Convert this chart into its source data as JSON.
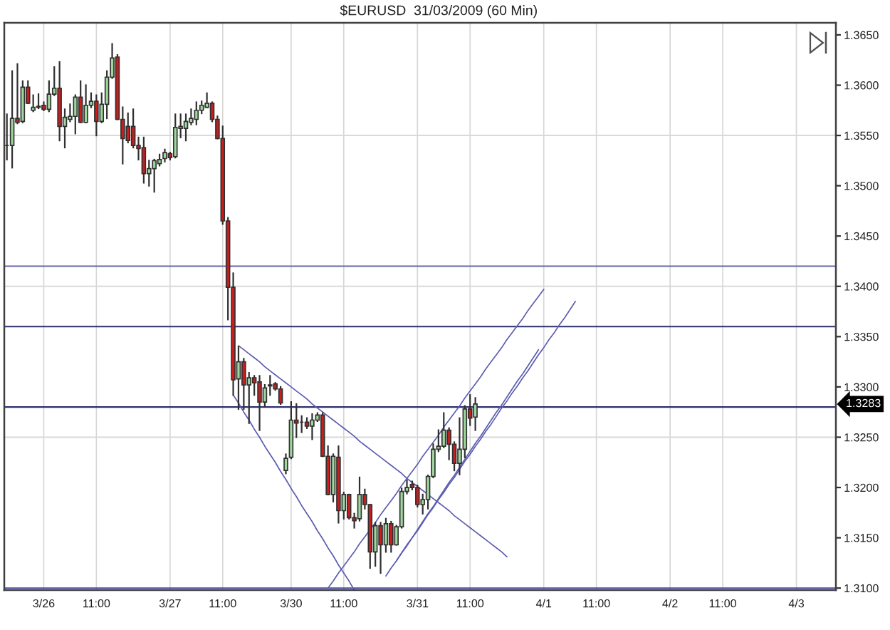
{
  "chart_data": {
    "type": "candlestick",
    "title": "$EURUSD  31/03/2009 (60 Min)",
    "categories": [
      null,
      null,
      null,
      null,
      null,
      null,
      null,
      "3/26",
      null,
      null,
      null,
      null,
      null,
      null,
      null,
      null,
      null,
      "11:00",
      null,
      null,
      null,
      null,
      null,
      null,
      null,
      null,
      null,
      null,
      null,
      null,
      null,
      "3/27",
      null,
      null,
      null,
      null,
      null,
      null,
      null,
      null,
      null,
      "11:00",
      null,
      null,
      null,
      null,
      null,
      null,
      null,
      null,
      null,
      null,
      null,
      null,
      "3/30",
      null,
      null,
      null,
      null,
      null,
      null,
      null,
      null,
      null,
      "11:00",
      null,
      null,
      null,
      null,
      null,
      null,
      null,
      null,
      null,
      null,
      null,
      null,
      null,
      "3/31",
      null,
      null,
      null,
      null,
      null,
      null,
      null,
      null,
      null,
      "11:00",
      null,
      null,
      null,
      null,
      null,
      null,
      null,
      null,
      null,
      null,
      null,
      null,
      null,
      "4/1",
      null,
      null,
      null,
      null,
      null,
      null,
      null,
      null,
      null,
      "11:00",
      null,
      null,
      null,
      null,
      null,
      null,
      null,
      null,
      null,
      null,
      null,
      null,
      null,
      "4/2",
      null,
      null,
      null,
      null,
      null,
      null,
      null,
      null,
      null,
      "11:00",
      null,
      null,
      null,
      null,
      null,
      null,
      null,
      null,
      null,
      null,
      null,
      null,
      null,
      "4/3",
      null,
      null,
      null,
      null,
      null,
      null,
      null
    ],
    "ohlc": [
      [
        1.354,
        1.3571,
        1.3526,
        1.354
      ],
      [
        1.354,
        1.3614,
        1.3518,
        1.3567
      ],
      [
        1.3567,
        1.3621,
        1.3562,
        1.3563
      ],
      [
        1.3564,
        1.3604,
        1.3563,
        1.3598
      ],
      [
        1.3598,
        1.3604,
        1.3582,
        1.3582
      ],
      [
        1.3575,
        1.359,
        1.3574,
        1.3578
      ],
      [
        1.3578,
        1.3591,
        1.3577,
        1.3579
      ],
      [
        1.358,
        1.3583,
        1.3575,
        1.3576
      ],
      [
        1.3576,
        1.3604,
        1.3574,
        1.3591
      ],
      [
        1.3591,
        1.3618,
        1.359,
        1.3597
      ],
      [
        1.3597,
        1.3623,
        1.3545,
        1.3559
      ],
      [
        1.3559,
        1.3576,
        1.3538,
        1.3568
      ],
      [
        1.3566,
        1.3581,
        1.3564,
        1.3569
      ],
      [
        1.3569,
        1.359,
        1.3552,
        1.3588
      ],
      [
        1.3588,
        1.3604,
        1.3563,
        1.3563
      ],
      [
        1.3563,
        1.36,
        1.3563,
        1.358
      ],
      [
        1.358,
        1.3592,
        1.3578,
        1.3584
      ],
      [
        1.3584,
        1.359,
        1.355,
        1.3564
      ],
      [
        1.3564,
        1.3592,
        1.3563,
        1.3581
      ],
      [
        1.3581,
        1.3614,
        1.3567,
        1.3608
      ],
      [
        1.3608,
        1.3641,
        1.3607,
        1.3627
      ],
      [
        1.3628,
        1.363,
        1.3566,
        1.3566
      ],
      [
        1.3566,
        1.3578,
        1.3522,
        1.3547
      ],
      [
        1.3559,
        1.3572,
        1.3543,
        1.3545
      ],
      [
        1.3559,
        1.3576,
        1.3538,
        1.354
      ],
      [
        1.354,
        1.3548,
        1.3526,
        1.3537
      ],
      [
        1.3538,
        1.3548,
        1.3503,
        1.3512
      ],
      [
        1.3512,
        1.3525,
        1.35,
        1.3517
      ],
      [
        1.3517,
        1.3526,
        1.3494,
        1.3525
      ],
      [
        1.3522,
        1.3531,
        1.352,
        1.3526
      ],
      [
        1.3527,
        1.3536,
        1.3524,
        1.3533
      ],
      [
        1.3532,
        1.3533,
        1.3526,
        1.3528
      ],
      [
        1.3529,
        1.3571,
        1.3528,
        1.3558
      ],
      [
        1.3557,
        1.3571,
        1.3548,
        1.3559
      ],
      [
        1.3557,
        1.3571,
        1.3545,
        1.3564
      ],
      [
        1.3563,
        1.3576,
        1.3561,
        1.3567
      ],
      [
        1.3566,
        1.3583,
        1.3561,
        1.3575
      ],
      [
        1.3575,
        1.3584,
        1.3572,
        1.358
      ],
      [
        1.3578,
        1.3592,
        1.3578,
        1.3582
      ],
      [
        1.3582,
        1.3583,
        1.3564,
        1.3566
      ],
      [
        1.3566,
        1.3569,
        1.3547,
        1.3547
      ],
      [
        1.3547,
        1.3559,
        1.3462,
        1.3465
      ],
      [
        1.3465,
        1.3468,
        1.3367,
        1.3399
      ],
      [
        1.3399,
        1.3413,
        1.3292,
        1.3307
      ],
      [
        1.3308,
        1.334,
        1.3278,
        1.3325
      ],
      [
        1.3325,
        1.3328,
        1.3278,
        1.3302
      ],
      [
        1.3302,
        1.3314,
        1.3264,
        1.3309
      ],
      [
        1.3309,
        1.3311,
        1.3292,
        1.3304
      ],
      [
        1.3305,
        1.3311,
        1.3257,
        1.3285
      ],
      [
        1.3285,
        1.3302,
        1.3281,
        1.3299
      ],
      [
        1.3302,
        1.3311,
        1.3292,
        1.3301
      ],
      [
        1.3303,
        1.3304,
        1.3297,
        1.3298
      ],
      [
        1.3298,
        1.33,
        1.3283,
        1.3284
      ],
      [
        1.3217,
        1.3233,
        1.3214,
        1.3229
      ],
      [
        1.323,
        1.3285,
        1.3229,
        1.3267
      ],
      [
        1.3267,
        1.3283,
        1.325,
        1.3264
      ],
      [
        1.3265,
        1.3271,
        1.3255,
        1.3265
      ],
      [
        1.3265,
        1.3269,
        1.3259,
        1.3261
      ],
      [
        1.3261,
        1.3273,
        1.3248,
        1.3267
      ],
      [
        1.3267,
        1.3274,
        1.3266,
        1.3272
      ],
      [
        1.3272,
        1.3274,
        1.3231,
        1.3231
      ],
      [
        1.3231,
        1.3241,
        1.3193,
        1.3193
      ],
      [
        1.3193,
        1.3233,
        1.3186,
        1.3231
      ],
      [
        1.323,
        1.3241,
        1.3165,
        1.3177
      ],
      [
        1.3177,
        1.3195,
        1.3169,
        1.3193
      ],
      [
        1.3193,
        1.3193,
        1.3169,
        1.317
      ],
      [
        1.317,
        1.3174,
        1.316,
        1.3167
      ],
      [
        1.3169,
        1.321,
        1.3167,
        1.3193
      ],
      [
        1.3193,
        1.3198,
        1.3179,
        1.3183
      ],
      [
        1.3183,
        1.3183,
        1.312,
        1.3136
      ],
      [
        1.3136,
        1.3165,
        1.3122,
        1.3162
      ],
      [
        1.3162,
        1.3165,
        1.3115,
        1.3143
      ],
      [
        1.3143,
        1.3169,
        1.3136,
        1.3164
      ],
      [
        1.3164,
        1.3166,
        1.3136,
        1.3143
      ],
      [
        1.3143,
        1.3162,
        1.3143,
        1.3161
      ],
      [
        1.3161,
        1.3199,
        1.316,
        1.3196
      ],
      [
        1.3196,
        1.3207,
        1.3194,
        1.32
      ],
      [
        1.3203,
        1.3206,
        1.3198,
        1.32
      ],
      [
        1.32,
        1.3202,
        1.3181,
        1.3183
      ],
      [
        1.3183,
        1.3193,
        1.3174,
        1.3188
      ],
      [
        1.3188,
        1.3212,
        1.3179,
        1.3211
      ],
      [
        1.3211,
        1.3243,
        1.321,
        1.3238
      ],
      [
        1.3238,
        1.3257,
        1.3236,
        1.3241
      ],
      [
        1.3241,
        1.3274,
        1.324,
        1.3257
      ],
      [
        1.3257,
        1.3259,
        1.3228,
        1.3243
      ],
      [
        1.3243,
        1.3245,
        1.3217,
        1.3224
      ],
      [
        1.3224,
        1.3269,
        1.3213,
        1.3238
      ],
      [
        1.3238,
        1.3281,
        1.323,
        1.3278
      ],
      [
        1.3278,
        1.3292,
        1.3262,
        1.3269
      ],
      [
        1.327,
        1.3289,
        1.3257,
        1.3283
      ],
      null,
      null,
      null,
      null,
      null,
      null,
      null,
      null,
      null,
      null,
      null,
      null,
      null,
      null,
      null,
      null,
      null,
      null,
      null,
      null,
      null,
      null,
      null,
      null,
      null,
      null,
      null,
      null,
      null,
      null,
      null,
      null,
      null,
      null,
      null,
      null,
      null,
      null,
      null,
      null,
      null,
      null,
      null,
      null,
      null,
      null,
      null,
      null,
      null,
      null,
      null,
      null,
      null,
      null,
      null,
      null,
      null,
      null,
      null,
      null,
      null,
      null,
      null,
      null,
      null,
      null,
      null,
      null
    ],
    "colors": [
      "#303030",
      "#9fd89f",
      "#c81e1e",
      "#9fd89f",
      "#c81e1e",
      "#9fd89f",
      "#9fd89f",
      "#c81e1e",
      "#9fd89f",
      "#9fd89f",
      "#c81e1e",
      "#9fd89f",
      "#9fd89f",
      "#9fd89f",
      "#c81e1e",
      "#9fd89f",
      "#9fd89f",
      "#c81e1e",
      "#9fd89f",
      "#9fd89f",
      "#9fd89f",
      "#c81e1e",
      "#c81e1e",
      "#c81e1e",
      "#c81e1e",
      "#c81e1e",
      "#c81e1e",
      "#9fd89f",
      "#9fd89f",
      "#9fd89f",
      "#9fd89f",
      "#c81e1e",
      "#9fd89f",
      "#9fd89f",
      "#9fd89f",
      "#9fd89f",
      "#9fd89f",
      "#9fd89f",
      "#9fd89f",
      "#c81e1e",
      "#c81e1e",
      "#c81e1e",
      "#c81e1e",
      "#c81e1e",
      "#9fd89f",
      "#c81e1e",
      "#9fd89f",
      "#c81e1e",
      "#c81e1e",
      "#9fd89f",
      "#c81e1e",
      "#c81e1e",
      "#c81e1e",
      "#9fd89f",
      "#9fd89f",
      "#c81e1e",
      "#303030",
      "#c81e1e",
      "#9fd89f",
      "#9fd89f",
      "#c81e1e",
      "#c81e1e",
      "#9fd89f",
      "#c81e1e",
      "#9fd89f",
      "#c81e1e",
      "#c81e1e",
      "#9fd89f",
      "#c81e1e",
      "#c81e1e",
      "#9fd89f",
      "#c81e1e",
      "#9fd89f",
      "#c81e1e",
      "#9fd89f",
      "#9fd89f",
      "#9fd89f",
      "#c81e1e",
      "#c81e1e",
      "#9fd89f",
      "#9fd89f",
      "#9fd89f",
      "#9fd89f",
      "#9fd89f",
      "#c81e1e",
      "#c81e1e",
      "#9fd89f",
      "#9fd89f",
      "#c81e1e",
      "#9fd89f",
      null,
      null,
      null,
      null,
      null,
      null,
      null,
      null,
      null,
      null,
      null,
      null,
      null,
      null,
      null,
      null,
      null,
      null,
      null,
      null,
      null,
      null,
      null,
      null,
      null,
      null,
      null,
      null,
      null,
      null,
      null,
      null,
      null,
      null,
      null,
      null,
      null,
      null,
      null,
      null,
      null,
      null,
      null,
      null,
      null,
      null,
      null,
      null,
      null,
      null,
      null,
      null,
      null,
      null,
      null,
      null,
      null,
      null,
      null,
      null,
      null,
      null,
      null,
      null,
      null,
      null,
      null,
      null
    ],
    "series": [
      {
        "type": "line",
        "color": "#5b5bb0",
        "values": [
          null,
          null,
          null,
          null,
          null,
          null,
          null,
          null,
          null,
          null,
          null,
          null,
          null,
          null,
          null,
          null,
          null,
          null,
          null,
          null,
          null,
          null,
          null,
          null,
          null,
          null,
          null,
          null,
          null,
          null,
          null,
          null,
          null,
          null,
          null,
          null,
          null,
          null,
          null,
          null,
          null,
          null,
          null,
          null,
          1.3341,
          1.3337,
          1.3333,
          1.3329,
          1.3325,
          1.332,
          1.3316,
          1.3312,
          1.3308,
          1.3304,
          1.33,
          1.3296,
          1.3292,
          1.3288,
          1.3283,
          1.3279,
          1.3275,
          1.3271,
          1.3267,
          1.3263,
          1.3259,
          1.3255,
          1.3251,
          1.3246,
          1.3242,
          1.3238,
          1.3234,
          1.323,
          1.3226,
          1.3222,
          1.3218,
          1.3214,
          1.3209,
          1.3205,
          1.3201,
          1.3197,
          1.3193,
          1.3189,
          1.3185,
          1.3181,
          1.3177,
          1.3172,
          1.3168,
          1.3164,
          1.316,
          1.3156,
          1.3152,
          1.3148,
          1.3144,
          1.314,
          1.3136,
          1.3131,
          null,
          null,
          null,
          null,
          null,
          null,
          null,
          null,
          null,
          null,
          null,
          null,
          null,
          null,
          null,
          null,
          null,
          null,
          null,
          null,
          null,
          null,
          null,
          null,
          null,
          null,
          null,
          null,
          null,
          null,
          null,
          null,
          null,
          null,
          null,
          null,
          null,
          null,
          null,
          null,
          null,
          null,
          null,
          null,
          null,
          null,
          null,
          null,
          null,
          null,
          null,
          null,
          null,
          null,
          null,
          null,
          null,
          null,
          null,
          null,
          null,
          null
        ]
      },
      {
        "type": "line",
        "color": "#5b5bb0",
        "values": [
          null,
          null,
          null,
          null,
          null,
          null,
          null,
          null,
          null,
          null,
          null,
          null,
          null,
          null,
          null,
          null,
          null,
          null,
          null,
          null,
          null,
          null,
          null,
          null,
          null,
          null,
          null,
          null,
          null,
          null,
          null,
          null,
          null,
          null,
          null,
          null,
          null,
          null,
          null,
          null,
          null,
          null,
          null,
          1.3292,
          1.3284,
          1.3275,
          1.3267,
          1.3258,
          1.325,
          1.3241,
          1.3233,
          1.3225,
          1.3216,
          1.3208,
          1.3199,
          1.3191,
          1.3182,
          1.3174,
          1.3166,
          1.3157,
          1.3149,
          1.314,
          1.3132,
          1.3123,
          1.3115,
          1.3107,
          1.3098,
          null,
          null,
          null,
          null,
          null,
          null,
          null,
          null,
          null,
          null,
          null,
          null,
          null,
          null,
          null,
          null,
          null,
          null,
          null,
          null,
          null,
          null,
          null,
          null,
          null,
          null,
          null,
          null,
          null,
          null,
          null,
          null,
          null,
          null,
          null,
          null,
          null,
          null,
          null,
          null,
          null,
          null,
          null,
          null,
          null,
          null,
          null,
          null,
          null,
          null,
          null,
          null,
          null,
          null,
          null,
          null,
          null,
          null,
          null,
          null,
          null,
          null,
          null,
          null,
          null,
          null,
          null,
          null,
          null,
          null,
          null,
          null,
          null,
          null,
          null,
          null,
          null,
          null,
          null,
          null,
          null,
          null,
          null,
          null,
          null,
          null,
          null,
          null,
          null,
          null,
          null
        ]
      },
      {
        "type": "line",
        "color": "#5b5bb0",
        "values": [
          null,
          null,
          null,
          null,
          null,
          null,
          null,
          null,
          null,
          null,
          null,
          null,
          null,
          null,
          null,
          null,
          null,
          null,
          null,
          null,
          null,
          null,
          null,
          null,
          null,
          null,
          null,
          null,
          null,
          null,
          null,
          null,
          null,
          null,
          null,
          null,
          null,
          null,
          null,
          null,
          null,
          null,
          null,
          null,
          null,
          null,
          null,
          null,
          null,
          null,
          null,
          null,
          null,
          null,
          null,
          null,
          null,
          null,
          null,
          null,
          null,
          1.31,
          1.3107,
          1.3115,
          1.3122,
          1.3129,
          1.3136,
          1.3144,
          1.3151,
          1.3158,
          1.3165,
          1.3173,
          1.318,
          1.3187,
          1.3194,
          1.3202,
          1.3209,
          1.3216,
          1.3223,
          1.3231,
          1.3238,
          1.3245,
          1.3252,
          1.326,
          1.3267,
          1.3274,
          1.3281,
          1.3289,
          1.3296,
          1.3303,
          1.331,
          1.3318,
          1.3325,
          1.3332,
          1.3339,
          1.3347,
          1.3354,
          1.3361,
          1.3368,
          1.3376,
          1.3383,
          1.339,
          1.3397,
          null,
          null,
          null,
          null,
          null,
          null,
          null,
          null,
          null,
          null,
          null,
          null,
          null,
          null,
          null,
          null,
          null,
          null,
          null,
          null,
          null,
          null,
          null,
          null,
          null,
          null,
          null,
          null,
          null,
          null,
          null,
          null,
          null,
          null,
          null,
          null,
          null,
          null,
          null,
          null,
          null,
          null,
          null,
          null,
          null,
          null,
          null,
          null,
          null,
          null,
          null,
          null,
          null,
          null,
          null
        ]
      },
      {
        "type": "line",
        "color": "#5b5bb0",
        "values": [
          null,
          null,
          null,
          null,
          null,
          null,
          null,
          null,
          null,
          null,
          null,
          null,
          null,
          null,
          null,
          null,
          null,
          null,
          null,
          null,
          null,
          null,
          null,
          null,
          null,
          null,
          null,
          null,
          null,
          null,
          null,
          null,
          null,
          null,
          null,
          null,
          null,
          null,
          null,
          null,
          null,
          null,
          null,
          null,
          null,
          null,
          null,
          null,
          null,
          null,
          null,
          null,
          null,
          null,
          null,
          null,
          null,
          null,
          null,
          null,
          null,
          null,
          null,
          null,
          null,
          null,
          null,
          null,
          null,
          null,
          null,
          null,
          1.3112,
          1.312,
          1.3127,
          1.3135,
          1.3142,
          1.315,
          1.3157,
          1.3165,
          1.3173,
          1.318,
          1.3188,
          1.3195,
          1.3203,
          1.321,
          1.3218,
          1.3226,
          1.3233,
          1.3241,
          1.3248,
          1.3256,
          1.3263,
          1.3271,
          1.3279,
          1.3286,
          1.3294,
          1.3301,
          1.3309,
          1.3316,
          1.3324,
          1.3332,
          1.3339,
          1.3347,
          1.3354,
          1.3362,
          1.3369,
          1.3377,
          1.3385,
          null,
          null,
          null,
          null,
          null,
          null,
          null,
          null,
          null,
          null,
          null,
          null,
          null,
          null,
          null,
          null,
          null,
          null,
          null,
          null,
          null,
          null,
          null,
          null,
          null,
          null,
          null,
          null,
          null,
          null,
          null,
          null,
          null,
          null,
          null,
          null,
          null,
          null,
          null,
          null,
          null,
          null,
          null,
          null,
          null,
          null,
          null,
          null,
          null
        ]
      },
      {
        "type": "line",
        "color": "#5b5bb0",
        "values": [
          null,
          null,
          null,
          null,
          null,
          null,
          null,
          null,
          null,
          null,
          null,
          null,
          null,
          null,
          null,
          null,
          null,
          null,
          null,
          null,
          null,
          null,
          null,
          null,
          null,
          null,
          null,
          null,
          null,
          null,
          null,
          null,
          null,
          null,
          null,
          null,
          null,
          null,
          null,
          null,
          null,
          null,
          null,
          null,
          null,
          null,
          null,
          null,
          null,
          null,
          null,
          null,
          null,
          null,
          null,
          null,
          null,
          null,
          null,
          null,
          null,
          null,
          null,
          null,
          null,
          null,
          null,
          null,
          null,
          null,
          null,
          null,
          null,
          null,
          1.3127,
          1.3135,
          1.3143,
          1.315,
          1.3158,
          1.3166,
          1.3174,
          1.3181,
          1.3189,
          1.3197,
          1.3205,
          1.3212,
          1.322,
          1.3228,
          1.3236,
          1.3244,
          1.3251,
          1.3259,
          1.3267,
          1.3275,
          1.3282,
          1.329,
          1.3298,
          1.3306,
          1.3313,
          1.3321,
          1.3329,
          1.3337,
          null,
          null,
          null,
          null,
          null,
          null,
          null,
          null,
          null,
          null,
          null,
          null,
          null,
          null,
          null,
          null,
          null,
          null,
          null,
          null,
          null,
          null,
          null,
          null,
          null,
          null,
          null,
          null,
          null,
          null,
          null,
          null,
          null,
          null,
          null,
          null,
          null,
          null,
          null,
          null,
          null,
          null,
          null,
          null,
          null,
          null,
          null,
          null,
          null,
          null,
          null,
          null,
          null,
          null,
          null,
          null
        ]
      }
    ],
    "ref_lines": [
      {
        "axis": "y",
        "value": 1.355,
        "color": "#d9d9d9"
      },
      {
        "axis": "y",
        "value": 1.34,
        "color": "#d9d9d9"
      },
      {
        "axis": "y",
        "value": 1.325,
        "color": "#d9d9d9"
      },
      {
        "axis": "y",
        "value": 1.342,
        "color": "#6666aa"
      },
      {
        "axis": "y",
        "value": 1.336,
        "color": "#2e2e6e"
      },
      {
        "axis": "y",
        "value": 1.328,
        "color": "#2e2e6e"
      },
      {
        "axis": "y",
        "value": 1.31,
        "color": "#4a4aa0"
      }
    ],
    "annotations": [
      "1.3283"
    ],
    "ylim": [
      1.3098,
      1.3662
    ],
    "yticks": [
      {
        "value": 1.31,
        "label": "1.3100"
      },
      {
        "value": 1.315,
        "label": "1.3150"
      },
      {
        "value": 1.32,
        "label": "1.3200"
      },
      {
        "value": 1.325,
        "label": "1.3250"
      },
      {
        "value": 1.33,
        "label": "1.3300"
      },
      {
        "value": 1.335,
        "label": "1.3350"
      },
      {
        "value": 1.34,
        "label": "1.3400"
      },
      {
        "value": 1.345,
        "label": "1.3450"
      },
      {
        "value": 1.35,
        "label": "1.3500"
      },
      {
        "value": 1.355,
        "label": "1.3550"
      },
      {
        "value": 1.36,
        "label": "1.3600"
      },
      {
        "value": 1.365,
        "label": "1.3650"
      }
    ],
    "grid": "x"
  }
}
